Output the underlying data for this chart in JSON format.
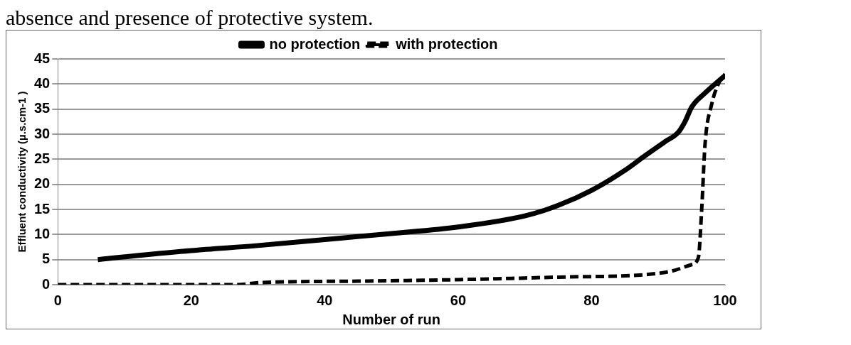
{
  "chart_data": {
    "type": "line",
    "title": "absence and presence of protective system.",
    "xlabel": "Number of run",
    "ylabel": "Effluent conductivity (µ.s.cm-1 )",
    "xlim": [
      0,
      100
    ],
    "xticks": [
      0,
      20,
      40,
      60,
      80,
      100
    ],
    "ylim": [
      0,
      45
    ],
    "yticks": [
      0,
      5,
      10,
      15,
      20,
      25,
      30,
      35,
      40,
      45
    ],
    "grid": "y",
    "legend": "top",
    "marker": "none",
    "series": [
      {
        "name": "no protection",
        "color": "#000000",
        "line_style": "solid",
        "x": [
          6,
          20,
          30,
          40,
          50,
          60,
          70,
          75,
          80,
          85,
          88,
          91,
          93,
          94,
          95,
          97,
          100
        ],
        "values": [
          5,
          6.8,
          7.8,
          9,
          10.2,
          11.5,
          13.7,
          15.8,
          18.8,
          22.8,
          25.7,
          28.5,
          30.4,
          32.5,
          35.4,
          38.2,
          41.7
        ]
      },
      {
        "name": "with protection",
        "color": "#000000",
        "line_style": "dashed",
        "x": [
          0,
          27,
          30,
          45,
          60,
          75,
          88,
          92,
          95,
          96,
          96.5,
          97,
          98,
          99,
          100
        ],
        "values": [
          0,
          0,
          0.4,
          0.7,
          1,
          1.5,
          2,
          2.7,
          4,
          5.4,
          15,
          28,
          36,
          40,
          42
        ]
      }
    ]
  }
}
